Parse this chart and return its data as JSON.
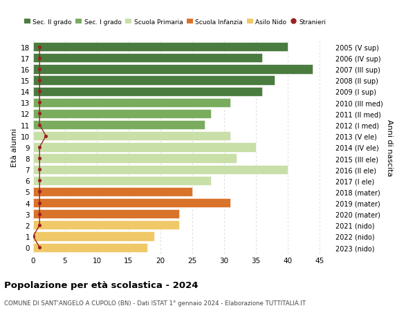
{
  "ages": [
    18,
    17,
    16,
    15,
    14,
    13,
    12,
    11,
    10,
    9,
    8,
    7,
    6,
    5,
    4,
    3,
    2,
    1,
    0
  ],
  "years": [
    "2005 (V sup)",
    "2006 (IV sup)",
    "2007 (III sup)",
    "2008 (II sup)",
    "2009 (I sup)",
    "2010 (III med)",
    "2011 (II med)",
    "2012 (I med)",
    "2013 (V ele)",
    "2014 (IV ele)",
    "2015 (III ele)",
    "2016 (II ele)",
    "2017 (I ele)",
    "2018 (mater)",
    "2019 (mater)",
    "2020 (mater)",
    "2021 (nido)",
    "2022 (nido)",
    "2023 (nido)"
  ],
  "values": [
    40,
    36,
    44,
    38,
    36,
    31,
    28,
    27,
    31,
    35,
    32,
    40,
    28,
    25,
    31,
    23,
    23,
    19,
    18
  ],
  "stranieri": [
    1,
    1,
    1,
    1,
    1,
    1,
    1,
    1,
    2,
    1,
    1,
    1,
    1,
    1,
    1,
    1,
    1,
    0,
    1
  ],
  "colors": [
    "#4a7c3f",
    "#4a7c3f",
    "#4a7c3f",
    "#4a7c3f",
    "#4a7c3f",
    "#7aac5e",
    "#7aac5e",
    "#7aac5e",
    "#c8dfa8",
    "#c8dfa8",
    "#c8dfa8",
    "#c8dfa8",
    "#c8dfa8",
    "#d9732a",
    "#d9732a",
    "#d9732a",
    "#f0c868",
    "#f0c868",
    "#f0c868"
  ],
  "legend_labels": [
    "Sec. II grado",
    "Sec. I grado",
    "Scuola Primaria",
    "Scuola Infanzia",
    "Asilo Nido",
    "Stranieri"
  ],
  "legend_colors": [
    "#4a7c3f",
    "#7aac5e",
    "#c8dfa8",
    "#d9732a",
    "#f0c868",
    "#9b2020"
  ],
  "stranieri_color": "#9b2020",
  "title": "Popolazione per età scolastica - 2024",
  "subtitle": "COMUNE DI SANT'ANGELO A CUPOLO (BN) - Dati ISTAT 1° gennaio 2024 - Elaborazione TUTTITALIA.IT",
  "ylabel_left": "Età alunni",
  "ylabel_right": "Anni di nascita",
  "xlim": [
    0,
    47
  ],
  "xticks": [
    0,
    5,
    10,
    15,
    20,
    25,
    30,
    35,
    40,
    45
  ],
  "bg_color": "#ffffff",
  "grid_color": "#cccccc"
}
